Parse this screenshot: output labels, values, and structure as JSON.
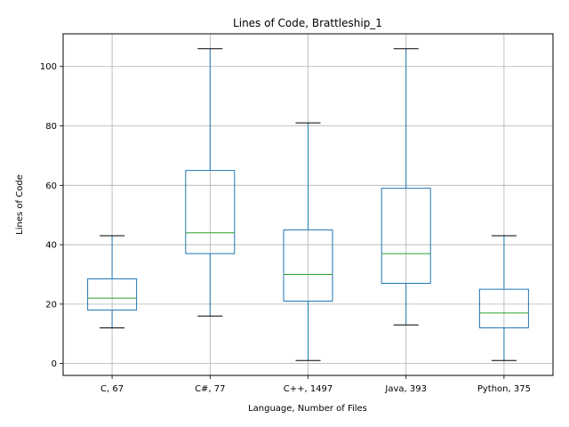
{
  "chart_data": {
    "type": "box",
    "title": "Lines of Code, Brattleship_1",
    "xlabel": "Language, Number of Files",
    "ylabel": "Lines of Code",
    "ylim": [
      -4,
      111
    ],
    "yticks": [
      0,
      20,
      40,
      60,
      80,
      100
    ],
    "grid": true,
    "categories": [
      "C, 67",
      "C#, 77",
      "C++, 1497",
      "Java, 393",
      "Python, 375"
    ],
    "boxes": [
      {
        "whisker_low": 12,
        "q1": 18,
        "median": 22,
        "q3": 28.5,
        "whisker_high": 43
      },
      {
        "whisker_low": 16,
        "q1": 37,
        "median": 44,
        "q3": 65,
        "whisker_high": 106
      },
      {
        "whisker_low": 1,
        "q1": 21,
        "median": 30,
        "q3": 45,
        "whisker_high": 81
      },
      {
        "whisker_low": 13,
        "q1": 27,
        "median": 37,
        "q3": 59,
        "whisker_high": 106
      },
      {
        "whisker_low": 1,
        "q1": 12,
        "median": 17,
        "q3": 25,
        "whisker_high": 43
      }
    ],
    "colors": {
      "box": "#1f77b4",
      "median": "#2ca02c",
      "cap": "#000000",
      "grid": "#b0b0b0"
    }
  }
}
